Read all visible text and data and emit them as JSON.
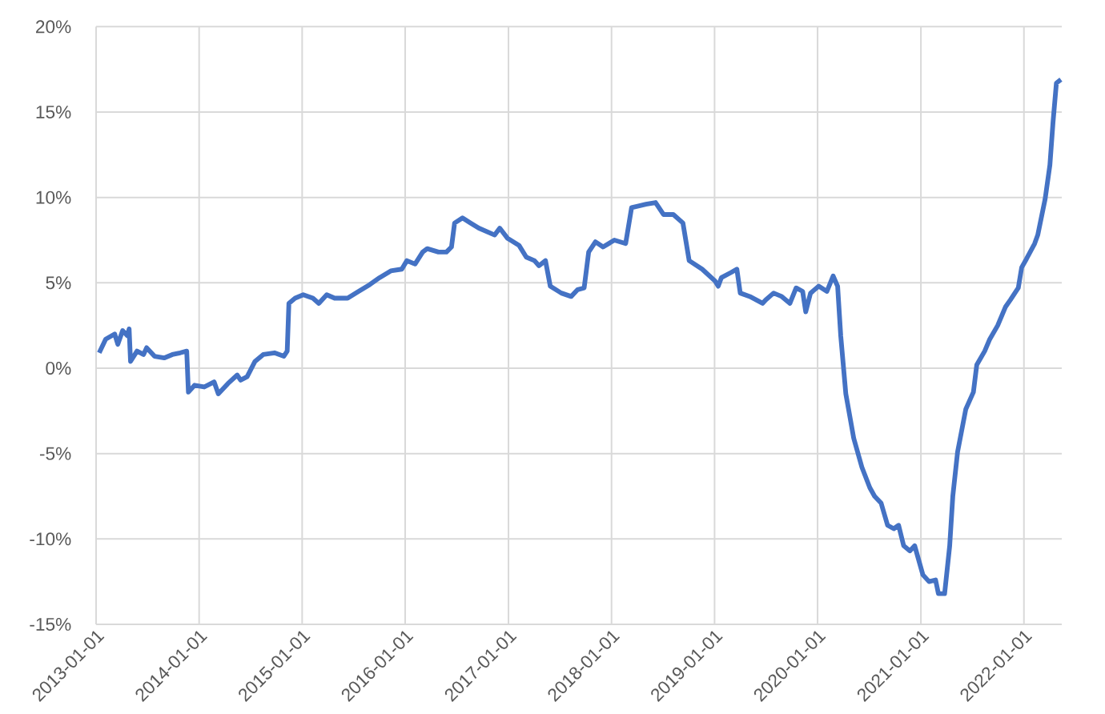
{
  "chart_data": {
    "type": "line",
    "x": [
      "2013-01-12",
      "2013-02-04",
      "2013-03-08",
      "2013-03-19",
      "2013-04-05",
      "2013-04-22",
      "2013-04-28",
      "2013-05-03",
      "2013-05-26",
      "2013-06-18",
      "2013-06-29",
      "2013-07-27",
      "2013-08-30",
      "2013-09-28",
      "2013-10-26",
      "2013-11-18",
      "2013-11-24",
      "2013-12-16",
      "2014-01-19",
      "2014-02-23",
      "2014-03-10",
      "2014-04-13",
      "2014-05-16",
      "2014-05-28",
      "2014-06-20",
      "2014-07-18",
      "2014-08-16",
      "2014-09-25",
      "2014-10-28",
      "2014-11-09",
      "2014-11-15",
      "2014-12-07",
      "2015-01-05",
      "2015-02-08",
      "2015-03-01",
      "2015-03-29",
      "2015-04-26",
      "2015-06-11",
      "2015-07-20",
      "2015-08-29",
      "2015-10-02",
      "2015-11-11",
      "2015-12-20",
      "2016-01-07",
      "2016-02-05",
      "2016-03-03",
      "2016-03-19",
      "2016-04-28",
      "2016-05-26",
      "2016-06-13",
      "2016-06-24",
      "2016-07-22",
      "2016-08-20",
      "2016-09-18",
      "2016-11-13",
      "2016-12-01",
      "2016-12-29",
      "2017-02-07",
      "2017-03-05",
      "2017-04-03",
      "2017-04-19",
      "2017-05-12",
      "2017-05-29",
      "2017-07-07",
      "2017-08-11",
      "2017-09-03",
      "2017-09-26",
      "2017-10-12",
      "2017-11-05",
      "2017-12-02",
      "2018-01-11",
      "2018-02-20",
      "2018-03-13",
      "2018-05-03",
      "2018-06-06",
      "2018-07-04",
      "2018-08-08",
      "2018-09-11",
      "2018-10-03",
      "2018-11-18",
      "2019-01-03",
      "2019-01-14",
      "2019-01-25",
      "2019-02-28",
      "2019-03-21",
      "2019-04-02",
      "2019-05-06",
      "2019-06-20",
      "2019-07-01",
      "2019-07-29",
      "2019-08-27",
      "2019-09-25",
      "2019-10-17",
      "2019-11-09",
      "2019-11-20",
      "2019-12-07",
      "2020-01-05",
      "2020-02-03",
      "2020-02-25",
      "2020-03-12",
      "2020-03-23",
      "2020-04-10",
      "2020-05-08",
      "2020-06-06",
      "2020-07-04",
      "2020-07-21",
      "2020-08-13",
      "2020-09-05",
      "2020-09-27",
      "2020-10-14",
      "2020-11-01",
      "2020-11-23",
      "2020-12-10",
      "2021-01-08",
      "2021-01-30",
      "2021-02-22",
      "2021-03-04",
      "2021-03-26",
      "2021-04-13",
      "2021-04-24",
      "2021-05-11",
      "2021-06-09",
      "2021-07-06",
      "2021-07-18",
      "2021-08-15",
      "2021-09-02",
      "2021-09-30",
      "2021-10-28",
      "2021-11-14",
      "2021-12-12",
      "2021-12-24",
      "2022-01-10",
      "2022-02-08",
      "2022-02-19",
      "2022-03-17",
      "2022-04-03",
      "2022-04-14",
      "2022-04-26",
      "2022-05-12"
    ],
    "series": [
      {
        "color": "#4472c4",
        "values": [
          0.9,
          1.7,
          2.0,
          1.4,
          2.2,
          1.9,
          2.3,
          0.4,
          1.0,
          0.8,
          1.2,
          0.7,
          0.6,
          0.8,
          0.9,
          1.0,
          -1.4,
          -1.0,
          -1.1,
          -0.8,
          -1.5,
          -0.9,
          -0.4,
          -0.7,
          -0.5,
          0.4,
          0.8,
          0.9,
          0.7,
          1.0,
          3.8,
          4.1,
          4.3,
          4.1,
          3.8,
          4.3,
          4.1,
          4.1,
          4.5,
          4.9,
          5.3,
          5.7,
          5.8,
          6.3,
          6.1,
          6.8,
          7.0,
          6.8,
          6.8,
          7.1,
          8.5,
          8.8,
          8.5,
          8.2,
          7.8,
          8.2,
          7.6,
          7.2,
          6.5,
          6.3,
          6.0,
          6.3,
          4.8,
          4.4,
          4.2,
          4.6,
          4.7,
          6.8,
          7.4,
          7.1,
          7.5,
          7.3,
          9.4,
          9.6,
          9.7,
          9.0,
          9.0,
          8.5,
          6.3,
          5.8,
          5.1,
          4.8,
          5.3,
          5.6,
          5.8,
          4.4,
          4.2,
          3.8,
          4.0,
          4.4,
          4.2,
          3.8,
          4.7,
          4.5,
          3.3,
          4.4,
          4.8,
          4.5,
          5.4,
          4.8,
          1.9,
          -1.5,
          -4.1,
          -5.8,
          -7.0,
          -7.5,
          -7.9,
          -9.2,
          -9.4,
          -9.2,
          -10.4,
          -10.7,
          -10.4,
          -12.1,
          -12.5,
          -12.4,
          -13.2,
          -13.2,
          -10.4,
          -7.5,
          -4.9,
          -2.4,
          -1.4,
          0.2,
          1.0,
          1.7,
          2.5,
          3.6,
          4.0,
          4.7,
          5.9,
          6.4,
          7.3,
          7.8,
          9.9,
          11.9,
          14.4,
          16.7,
          16.9
        ]
      }
    ],
    "xlim": [
      "2013-01-01",
      "2022-05-15"
    ],
    "xticks": [
      "2013-01-01",
      "2014-01-01",
      "2015-01-01",
      "2016-01-01",
      "2017-01-01",
      "2018-01-01",
      "2019-01-01",
      "2020-01-01",
      "2021-01-01",
      "2022-01-01"
    ],
    "ylim": [
      -15,
      20
    ],
    "yticks": [
      {
        "value": -15,
        "label": "-15%"
      },
      {
        "value": -10,
        "label": "-10%"
      },
      {
        "value": -5,
        "label": "-5%"
      },
      {
        "value": 0,
        "label": "0%"
      },
      {
        "value": 5,
        "label": "5%"
      },
      {
        "value": 10,
        "label": "10%"
      },
      {
        "value": 15,
        "label": "15%"
      },
      {
        "value": 20,
        "label": "20%"
      }
    ],
    "grid": true,
    "marker": "none",
    "line_style": "solid"
  }
}
